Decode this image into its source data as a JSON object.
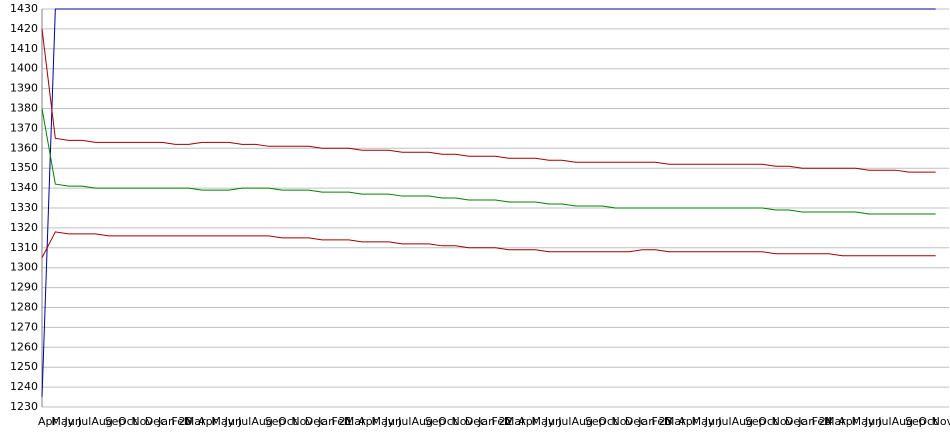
{
  "chart_data": {
    "type": "line",
    "categories": [
      "Apr",
      "May",
      "Jun",
      "Jul",
      "Aug",
      "Sep",
      "Oct",
      "Nov",
      "Dec",
      "Jan 20",
      "Feb",
      "Mar",
      "Apr",
      "May",
      "Jun",
      "Jul",
      "Aug",
      "Sep",
      "Oct",
      "Nov",
      "Dec",
      "Jan 21",
      "Feb",
      "Mar",
      "Apr",
      "May",
      "Jun",
      "Jul",
      "Aug",
      "Sep",
      "Oct",
      "Nov",
      "Dec",
      "Jan 22",
      "Feb",
      "Mar",
      "Apr",
      "May",
      "Jun",
      "Jul",
      "Aug",
      "Sep",
      "Oct",
      "Nov",
      "Dec",
      "Jan 23",
      "Feb",
      "Mar",
      "Apr",
      "May",
      "Jun",
      "Jul",
      "Aug",
      "Sep",
      "Oct",
      "Nov",
      "Dec",
      "Jan 24",
      "Feb",
      "Mar",
      "Apr",
      "May",
      "Jun",
      "Jul",
      "Aug",
      "Sep",
      "Oct",
      "Nov"
    ],
    "series": [
      {
        "color": "#0000a0",
        "values": [
          1235,
          1430,
          1430,
          1430,
          1430,
          1430,
          1430,
          1430,
          1430,
          1430,
          1430,
          1430,
          1430,
          1430,
          1430,
          1430,
          1430,
          1430,
          1430,
          1430,
          1430,
          1430,
          1430,
          1430,
          1430,
          1430,
          1430,
          1430,
          1430,
          1430,
          1430,
          1430,
          1430,
          1430,
          1430,
          1430,
          1430,
          1430,
          1430,
          1430,
          1430,
          1430,
          1430,
          1430,
          1430,
          1430,
          1430,
          1430,
          1430,
          1430,
          1430,
          1430,
          1430,
          1430,
          1430,
          1430,
          1430,
          1430,
          1430,
          1430,
          1430,
          1430,
          1430,
          1430,
          1430,
          1430,
          1430,
          1430
        ]
      },
      {
        "color": "#a00000",
        "values": [
          1420,
          1365,
          1364,
          1364,
          1363,
          1363,
          1363,
          1363,
          1363,
          1363,
          1362,
          1362,
          1363,
          1363,
          1363,
          1362,
          1362,
          1361,
          1361,
          1361,
          1361,
          1360,
          1360,
          1360,
          1359,
          1359,
          1359,
          1358,
          1358,
          1358,
          1357,
          1357,
          1356,
          1356,
          1356,
          1355,
          1355,
          1355,
          1354,
          1354,
          1353,
          1353,
          1353,
          1353,
          1353,
          1353,
          1353,
          1352,
          1352,
          1352,
          1352,
          1352,
          1352,
          1352,
          1352,
          1351,
          1351,
          1350,
          1350,
          1350,
          1350,
          1350,
          1349,
          1349,
          1349,
          1348,
          1348,
          1348
        ]
      },
      {
        "color": "#008000",
        "values": [
          1380,
          1342,
          1341,
          1341,
          1340,
          1340,
          1340,
          1340,
          1340,
          1340,
          1340,
          1340,
          1339,
          1339,
          1339,
          1340,
          1340,
          1340,
          1339,
          1339,
          1339,
          1338,
          1338,
          1338,
          1337,
          1337,
          1337,
          1336,
          1336,
          1336,
          1335,
          1335,
          1334,
          1334,
          1334,
          1333,
          1333,
          1333,
          1332,
          1332,
          1331,
          1331,
          1331,
          1330,
          1330,
          1330,
          1330,
          1330,
          1330,
          1330,
          1330,
          1330,
          1330,
          1330,
          1330,
          1329,
          1329,
          1328,
          1328,
          1328,
          1328,
          1328,
          1327,
          1327,
          1327,
          1327,
          1327,
          1327
        ]
      },
      {
        "color": "#a00000",
        "values": [
          1305,
          1318,
          1317,
          1317,
          1317,
          1316,
          1316,
          1316,
          1316,
          1316,
          1316,
          1316,
          1316,
          1316,
          1316,
          1316,
          1316,
          1316,
          1315,
          1315,
          1315,
          1314,
          1314,
          1314,
          1313,
          1313,
          1313,
          1312,
          1312,
          1312,
          1311,
          1311,
          1310,
          1310,
          1310,
          1309,
          1309,
          1309,
          1308,
          1308,
          1308,
          1308,
          1308,
          1308,
          1308,
          1309,
          1309,
          1308,
          1308,
          1308,
          1308,
          1308,
          1308,
          1308,
          1308,
          1307,
          1307,
          1307,
          1307,
          1307,
          1306,
          1306,
          1306,
          1306,
          1306,
          1306,
          1306,
          1306
        ]
      }
    ],
    "ylim": [
      1230,
      1430
    ],
    "yticks": [
      1230,
      1240,
      1250,
      1260,
      1270,
      1280,
      1290,
      1300,
      1310,
      1320,
      1330,
      1340,
      1350,
      1360,
      1370,
      1380,
      1390,
      1400,
      1410,
      1420,
      1430
    ],
    "grid": true
  }
}
